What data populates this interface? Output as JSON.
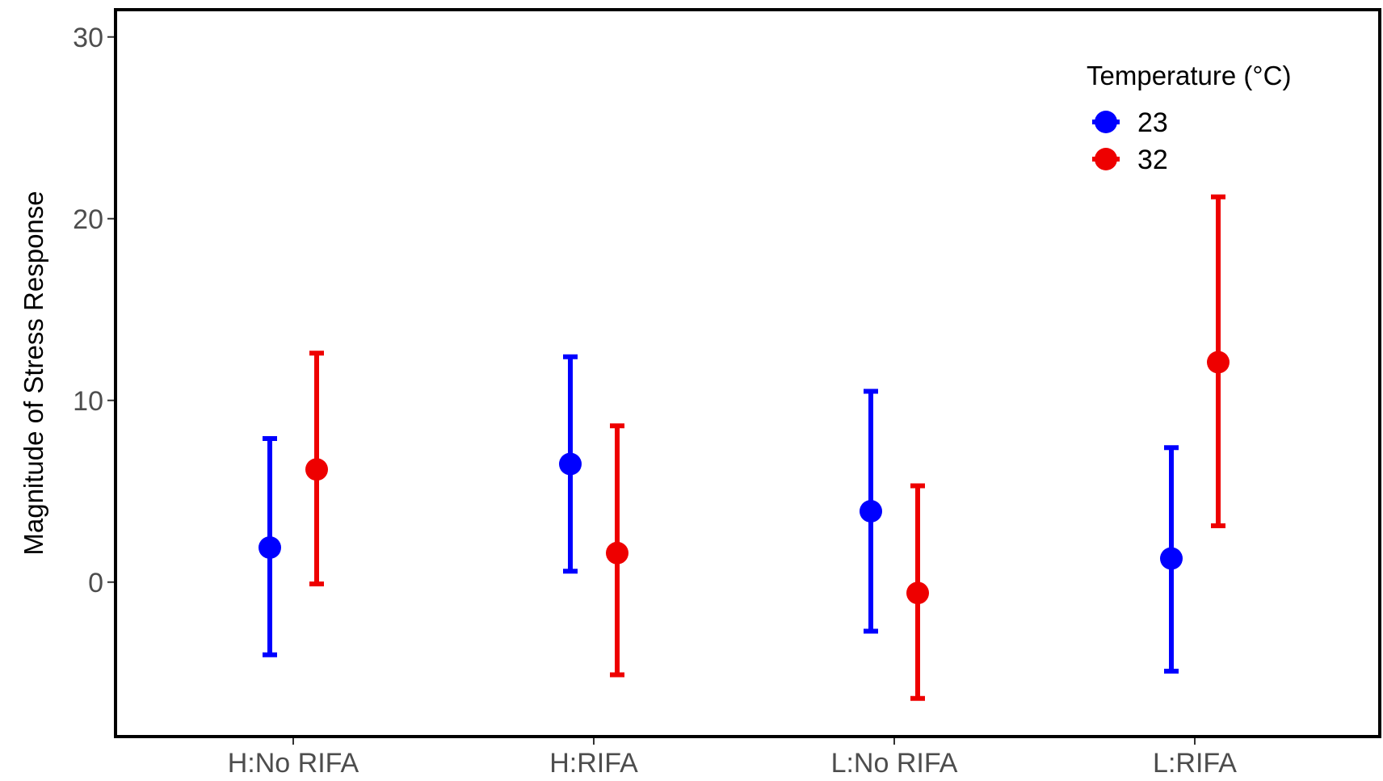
{
  "chart_data": {
    "type": "scatter",
    "title": "",
    "xlabel": "",
    "ylabel": "Magnitude of Stress Response",
    "ylim": [
      -8.5,
      31.5
    ],
    "yticks": [
      0,
      10,
      20,
      30
    ],
    "categories": [
      "H:No RIFA",
      "H:RIFA",
      "L:No RIFA",
      "L:RIFA"
    ],
    "grid": false,
    "legend": {
      "title": "Temperature (°C)",
      "placement": "top-right"
    },
    "series": [
      {
        "name": "23",
        "color": "#0000ff",
        "values": [
          1.9,
          6.5,
          3.9,
          1.3
        ],
        "lower": [
          -4.0,
          0.6,
          -2.7,
          -4.9
        ],
        "upper": [
          7.9,
          12.4,
          10.5,
          7.4
        ]
      },
      {
        "name": "32",
        "color": "#ee0000",
        "values": [
          6.2,
          1.6,
          -0.6,
          12.1
        ],
        "lower": [
          -0.1,
          -5.1,
          -6.4,
          3.1
        ],
        "upper": [
          12.6,
          8.6,
          5.3,
          21.2
        ]
      }
    ]
  }
}
